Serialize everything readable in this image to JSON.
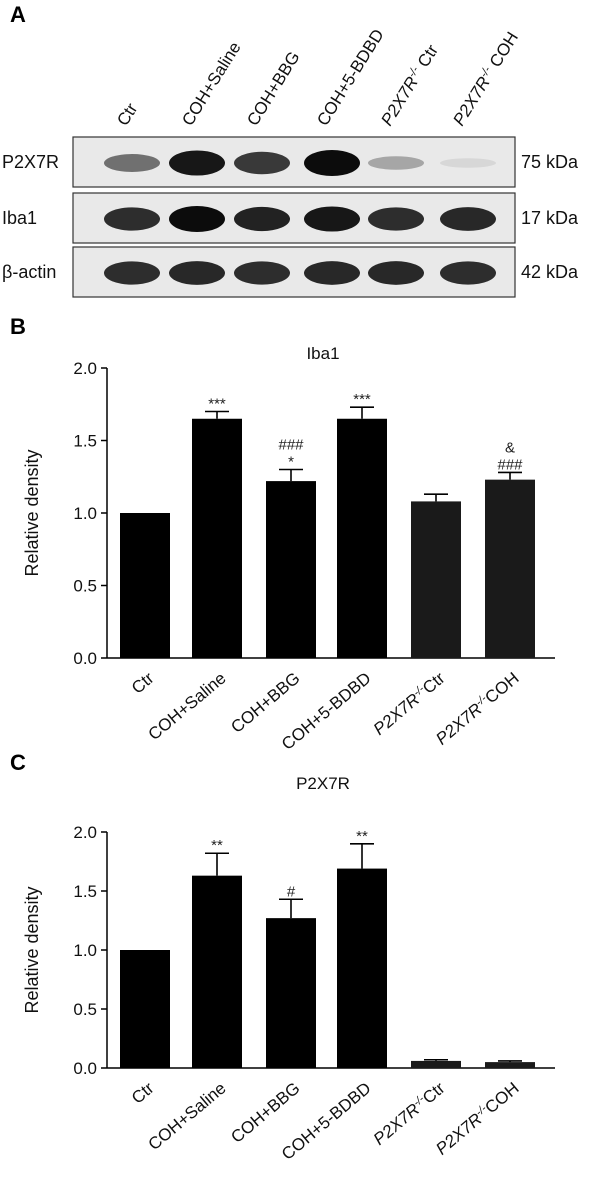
{
  "panels": {
    "a": "A",
    "b": "B",
    "c": "C"
  },
  "blot": {
    "lanes": [
      {
        "main": "Ctr",
        "italic": false,
        "sup": "",
        "rest": ""
      },
      {
        "main": "COH+Saline",
        "italic": false,
        "sup": "",
        "rest": ""
      },
      {
        "main": "COH+BBG",
        "italic": false,
        "sup": "",
        "rest": ""
      },
      {
        "main": "COH+5-BDBD",
        "italic": false,
        "sup": "",
        "rest": ""
      },
      {
        "main": "P2X7R",
        "italic": true,
        "sup": "-/-",
        "rest": " Ctr"
      },
      {
        "main": "P2X7R",
        "italic": true,
        "sup": "-/-",
        "rest": " COH"
      }
    ],
    "rows": [
      {
        "label": "P2X7R",
        "size": "75 kDa",
        "intensity": [
          0.55,
          0.95,
          0.8,
          1.0,
          0.3,
          0.08
        ]
      },
      {
        "label": "Iba1",
        "size": "17 kDa",
        "intensity": [
          0.85,
          1.0,
          0.9,
          0.95,
          0.85,
          0.88
        ]
      },
      {
        "label": "β-actin",
        "size": "42 kDa",
        "intensity": [
          0.85,
          0.88,
          0.85,
          0.87,
          0.87,
          0.85
        ]
      }
    ]
  },
  "colors": {
    "bar": "#000000",
    "bar_p2x7r_ko": "#1a1a1a",
    "band": "#0c0c0c",
    "blot_bg": "#e9e9e9"
  },
  "chart_data": [
    {
      "type": "bar",
      "title": "Iba1",
      "ylabel": "Relative density",
      "xlabel": "",
      "categories": [
        {
          "main": "Ctr",
          "italic": false,
          "sup": "",
          "rest": ""
        },
        {
          "main": "COH+Saline",
          "italic": false,
          "sup": "",
          "rest": ""
        },
        {
          "main": "COH+BBG",
          "italic": false,
          "sup": "",
          "rest": ""
        },
        {
          "main": "COH+5-BDBD",
          "italic": false,
          "sup": "",
          "rest": ""
        },
        {
          "main": "P2X7R",
          "italic": true,
          "sup": "-/-",
          "rest": "Ctr"
        },
        {
          "main": "P2X7R",
          "italic": true,
          "sup": "-/-",
          "rest": "COH"
        }
      ],
      "values": [
        1.0,
        1.65,
        1.22,
        1.65,
        1.08,
        1.23
      ],
      "errors": [
        0.0,
        0.05,
        0.08,
        0.08,
        0.05,
        0.05
      ],
      "annotations": [
        [],
        [
          "***"
        ],
        [
          "*",
          "###"
        ],
        [
          "***"
        ],
        [],
        [
          "###",
          "&"
        ]
      ],
      "ylim": [
        0,
        2.0
      ],
      "yticks": [
        "0.0",
        "0.5",
        "1.0",
        "1.5",
        "2.0"
      ],
      "grid": false
    },
    {
      "type": "bar",
      "title": "P2X7R",
      "ylabel": "Relative density",
      "xlabel": "",
      "categories": [
        {
          "main": "Ctr",
          "italic": false,
          "sup": "",
          "rest": ""
        },
        {
          "main": "COH+Saline",
          "italic": false,
          "sup": "",
          "rest": ""
        },
        {
          "main": "COH+BBG",
          "italic": false,
          "sup": "",
          "rest": ""
        },
        {
          "main": "COH+5-BDBD",
          "italic": false,
          "sup": "",
          "rest": ""
        },
        {
          "main": "P2X7R",
          "italic": true,
          "sup": "-/-",
          "rest": "Ctr"
        },
        {
          "main": "P2X7R",
          "italic": true,
          "sup": "-/-",
          "rest": "COH"
        }
      ],
      "values": [
        1.0,
        1.63,
        1.27,
        1.69,
        0.06,
        0.05
      ],
      "errors": [
        0.0,
        0.19,
        0.16,
        0.21,
        0.01,
        0.01
      ],
      "annotations": [
        [],
        [
          "**"
        ],
        [
          "#"
        ],
        [
          "**"
        ],
        [],
        []
      ],
      "ylim": [
        0,
        2.0
      ],
      "yticks": [
        "0.0",
        "0.5",
        "1.0",
        "1.5",
        "2.0"
      ],
      "grid": false
    }
  ]
}
